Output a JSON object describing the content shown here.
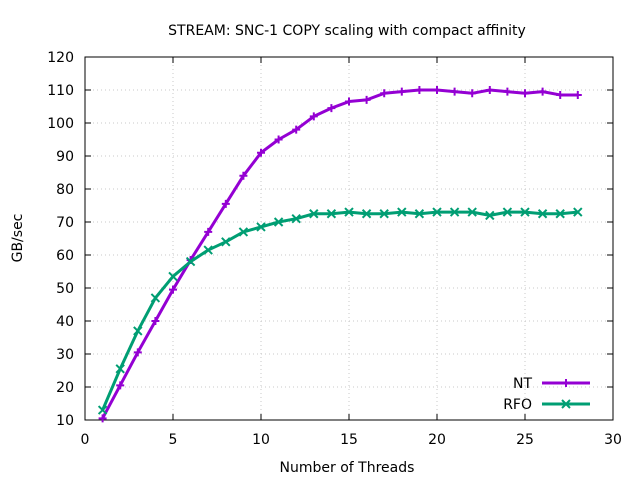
{
  "chart_data": {
    "type": "line",
    "title": "STREAM: SNC-1 COPY scaling with compact affinity",
    "xlabel": "Number of Threads",
    "ylabel": "GB/sec",
    "xlim": [
      0,
      30
    ],
    "ylim": [
      10,
      120
    ],
    "xticks": [
      0,
      5,
      10,
      15,
      20,
      25,
      30
    ],
    "yticks": [
      10,
      20,
      30,
      40,
      50,
      60,
      70,
      80,
      90,
      100,
      110,
      120
    ],
    "grid": true,
    "legend_position": "bottom-right",
    "x": [
      1,
      2,
      3,
      4,
      5,
      6,
      7,
      8,
      9,
      10,
      11,
      12,
      13,
      14,
      15,
      16,
      17,
      18,
      19,
      20,
      21,
      22,
      23,
      24,
      25,
      26,
      27,
      28
    ],
    "series": [
      {
        "name": "NT",
        "color": "#9400d3",
        "marker": "plus",
        "values": [
          10.5,
          20.5,
          30.5,
          40.0,
          49.5,
          58.5,
          67.0,
          75.5,
          84.0,
          91.0,
          95.0,
          98.0,
          102.0,
          104.5,
          106.5,
          107.0,
          109.0,
          109.5,
          110.0,
          110.0,
          109.5,
          109.0,
          110.0,
          109.5,
          109.0,
          109.5,
          108.5,
          108.5
        ]
      },
      {
        "name": "RFO",
        "color": "#009e73",
        "marker": "cross",
        "values": [
          13.0,
          25.5,
          37.0,
          47.0,
          53.5,
          58.0,
          61.5,
          64.0,
          67.0,
          68.5,
          70.0,
          71.0,
          72.5,
          72.5,
          73.0,
          72.5,
          72.5,
          73.0,
          72.5,
          73.0,
          73.0,
          73.0,
          72.0,
          73.0,
          73.0,
          72.5,
          72.5,
          73.0
        ]
      }
    ]
  }
}
